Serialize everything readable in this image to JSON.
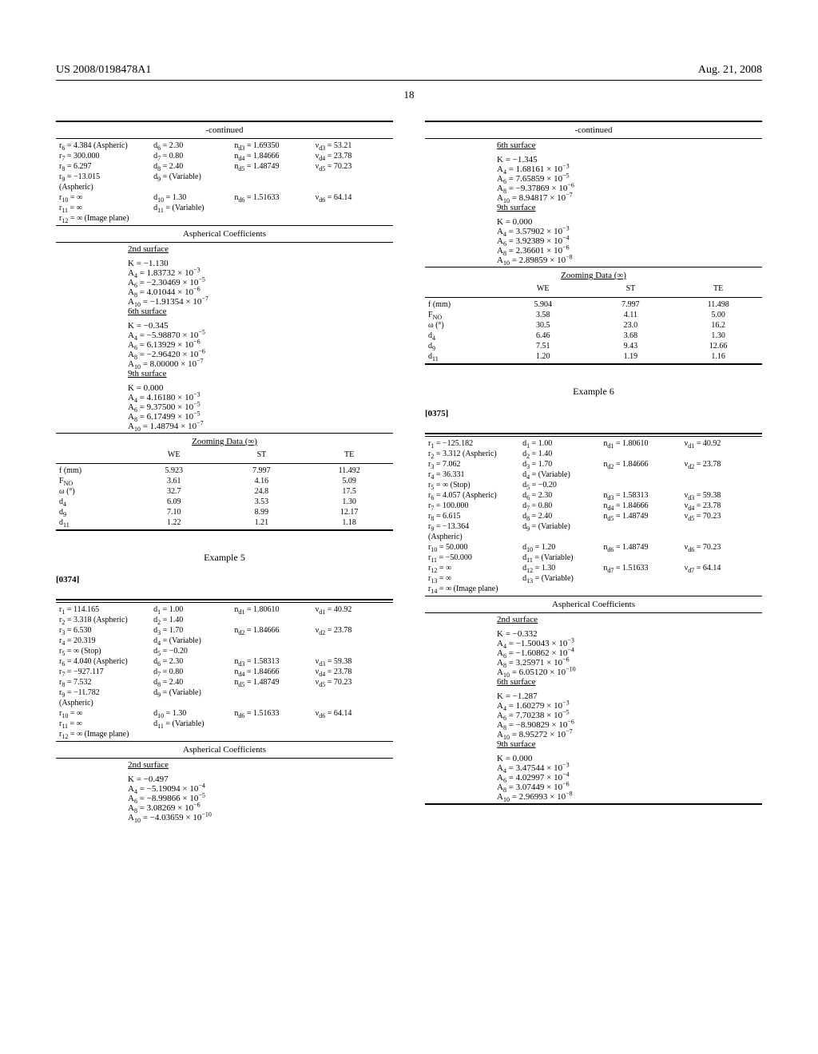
{
  "header": {
    "left": "US 2008/0198478A1",
    "right": "Aug. 21, 2008"
  },
  "page_number": "18",
  "left_col": {
    "continued_label": "-continued",
    "upper_rows": [
      [
        "r₆ = 4.384 (Aspheric)",
        "d₆ = 2.30",
        "n_d3 = 1.69350",
        "ν_d3 = 53.21"
      ],
      [
        "r₇ = 300.000",
        "d₇ = 0.80",
        "n_d4 = 1.84666",
        "ν_d4 = 23.78"
      ],
      [
        "r₈ = 6.297",
        "d₈ = 2.40",
        "n_d5 = 1.48749",
        "ν_d5 = 70.23"
      ],
      [
        "r₉ = −13.015",
        "d₉ = (Variable)",
        "",
        ""
      ],
      [
        "(Aspheric)",
        "",
        "",
        ""
      ],
      [
        "r₁₀ = ∞",
        "d₁₀ = 1.30",
        "n_d6 = 1.51633",
        "ν_d6 = 64.14"
      ],
      [
        "r₁₁ = ∞",
        "d₁₁ = (Variable)",
        "",
        ""
      ],
      [
        "r₁₂ = ∞ (Image plane)",
        "",
        "",
        ""
      ]
    ],
    "asph_title": "Aspherical Coefficients",
    "asph_blocks": [
      {
        "heading": "2nd surface",
        "lines": [
          "K = −1.130",
          "A₄ = 1.83732 × 10⁻³",
          "A₆ = −2.30469 × 10⁻⁵",
          "A₈ = 4.01044 × 10⁻⁶",
          "A₁₀ = −1.91354 × 10⁻⁷"
        ]
      },
      {
        "heading": "6th surface",
        "lines": [
          "K = −0.345",
          "A₄ = −5.98870 × 10⁻⁵",
          "A₆ = 6.13929 × 10⁻⁶",
          "A₈ = −2.96420 × 10⁻⁶",
          "A₁₀ = 8.00000 × 10⁻⁷"
        ]
      },
      {
        "heading": "9th surface",
        "lines": [
          "K = 0.000",
          "A₄ = 4.16180 × 10⁻³",
          "A₆ = 9.37500 × 10⁻⁵",
          "A₈ = 6.17499 × 10⁻⁵",
          "A₁₀ = 1.48794 × 10⁻⁷"
        ]
      }
    ],
    "zoom_title": "Zooming Data (∞)",
    "zoom_head": [
      "",
      "WE",
      "ST",
      "TE"
    ],
    "zoom_rows": [
      [
        "f (mm)",
        "5.923",
        "7.997",
        "11.492"
      ],
      [
        "F_NO",
        "3.61",
        "4.16",
        "5.09"
      ],
      [
        "ω (°)",
        "32.7",
        "24.8",
        "17.5"
      ],
      [
        "d₄",
        "6.09",
        "3.53",
        "1.30"
      ],
      [
        "d₉",
        "7.10",
        "8.99",
        "12.17"
      ],
      [
        "d₁₁",
        "1.22",
        "1.21",
        "1.18"
      ]
    ],
    "ex5_title": "Example 5",
    "ex5_para": "[0374]",
    "ex5_rows": [
      [
        "r₁ = 114.165",
        "d₁ = 1.00",
        "n_d1 = 1.80610",
        "ν_d1 = 40.92"
      ],
      [
        "r₂ = 3.318 (Aspheric)",
        "d₂ = 1.40",
        "",
        ""
      ],
      [
        "r₃ = 6.530",
        "d₃ = 1.70",
        "n_d2 = 1.84666",
        "ν_d2 = 23.78"
      ],
      [
        "r₄ = 20.319",
        "d₄ = (Variable)",
        "",
        ""
      ],
      [
        "r₅ = ∞ (Stop)",
        "d₅ = −0.20",
        "",
        ""
      ],
      [
        "r₆ = 4.040 (Aspheric)",
        "d₆ = 2.30",
        "n_d3 = 1.58313",
        "ν_d3 = 59.38"
      ],
      [
        "r₇ = −927.117",
        "d₇ = 0.80",
        "n_d4 = 1.84666",
        "ν_d4 = 23.78"
      ],
      [
        "r₈ = 7.532",
        "d₈ = 2.40",
        "n_d5 = 1.48749",
        "ν_d5 = 70.23"
      ],
      [
        "r₉ = −11.782",
        "d₉ = (Variable)",
        "",
        ""
      ],
      [
        "(Aspheric)",
        "",
        "",
        ""
      ],
      [
        "r₁₀ = ∞",
        "d₁₀ = 1.30",
        "n_d6 = 1.51633",
        "ν_d6 = 64.14"
      ],
      [
        "r₁₁ = ∞",
        "d₁₁ = (Variable)",
        "",
        ""
      ],
      [
        "r₁₂ = ∞ (Image plane)",
        "",
        "",
        ""
      ]
    ],
    "ex5_asph_title": "Aspherical Coefficients",
    "ex5_asph_block": {
      "heading": "2nd surface",
      "lines": [
        "K = −0.497",
        "A₄ = −5.19094 × 10⁻⁴",
        "A₆ = −8.99866 × 10⁻⁵",
        "A₈ = 3.08269 × 10⁻⁶",
        "A₁₀ = −4.03659 × 10⁻¹⁰"
      ]
    }
  },
  "right_col": {
    "continued_label": "-continued",
    "asph_blocks": [
      {
        "heading": "6th surface",
        "lines": [
          "K = −1.345",
          "A₄ = 1.68161 × 10⁻³",
          "A₆ = 7.65859 × 10⁻⁵",
          "A₈ = −9.37869 × 10⁻⁶",
          "A₁₀ = 8.94817 × 10⁻⁷"
        ]
      },
      {
        "heading": "9th surface",
        "lines": [
          "K = 0.000",
          "A₄ = 3.57902 × 10⁻³",
          "A₆ = 3.92389 × 10⁻⁴",
          "A₈ = 2.36601 × 10⁻⁶",
          "A₁₀ = 2.89859 × 10⁻⁸"
        ]
      }
    ],
    "zoom_title": "Zooming Data (∞)",
    "zoom_head": [
      "",
      "WE",
      "ST",
      "TE"
    ],
    "zoom_rows": [
      [
        "f (mm)",
        "5.904",
        "7.997",
        "11.498"
      ],
      [
        "F_NO",
        "3.58",
        "4.11",
        "5.00"
      ],
      [
        "ω (°)",
        "30.5",
        "23.0",
        "16.2"
      ],
      [
        "d₄",
        "6.46",
        "3.68",
        "1.30"
      ],
      [
        "d₉",
        "7.51",
        "9.43",
        "12.66"
      ],
      [
        "d₁₁",
        "1.20",
        "1.19",
        "1.16"
      ]
    ],
    "ex6_title": "Example 6",
    "ex6_para": "[0375]",
    "ex6_rows": [
      [
        "r₁ = −125.182",
        "d₁ = 1.00",
        "n_d1 = 1.80610",
        "ν_d1 = 40.92"
      ],
      [
        "r₂ = 3.312 (Aspheric)",
        "d₂ = 1.40",
        "",
        ""
      ],
      [
        "r₃ = 7.062",
        "d₃ = 1.70",
        "n_d2 = 1.84666",
        "ν_d2 = 23.78"
      ],
      [
        "r₄ = 36.331",
        "d₄ = (Variable)",
        "",
        ""
      ],
      [
        "r₅ = ∞ (Stop)",
        "d₅ = −0.20",
        "",
        ""
      ],
      [
        "r₆ = 4.057 (Aspheric)",
        "d₆ = 2.30",
        "n_d3 = 1.58313",
        "ν_d3 = 59.38"
      ],
      [
        "r₇ = 100.000",
        "d₇ = 0.80",
        "n_d4 = 1.84666",
        "ν_d4 = 23.78"
      ],
      [
        "r₈ = 6.615",
        "d₈ = 2.40",
        "n_d5 = 1.48749",
        "ν_d5 = 70.23"
      ],
      [
        "r₉ = −13.364",
        "d₉ = (Variable)",
        "",
        ""
      ],
      [
        "(Aspheric)",
        "",
        "",
        ""
      ],
      [
        "r₁₀ = 50.000",
        "d₁₀ = 1.20",
        "n_d6 = 1.48749",
        "ν_d6 = 70.23"
      ],
      [
        "r₁₁ = −50.000",
        "d₁₁ = (Variable)",
        "",
        ""
      ],
      [
        "r₁₂ = ∞",
        "d₁₂ = 1.30",
        "n_d7 = 1.51633",
        "ν_d7 = 64.14"
      ],
      [
        "r₁₃ = ∞",
        "d₁₃ = (Variable)",
        "",
        ""
      ],
      [
        "r₁₄ = ∞ (Image plane)",
        "",
        "",
        ""
      ]
    ],
    "ex6_asph_title": "Aspherical Coefficients",
    "ex6_asph_blocks": [
      {
        "heading": "2nd surface",
        "lines": [
          "K = −0.332",
          "A₄ = −1.50043 × 10⁻³",
          "A₆ = −1.60862 × 10⁻⁴",
          "A₈ = 3.25971 × 10⁻⁶",
          "A₁₀ = 6.05120 × 10⁻¹⁰"
        ]
      },
      {
        "heading": "6th surface",
        "lines": [
          "K = −1.287",
          "A₄ = 1.60279 × 10⁻³",
          "A₆ = 7.70238 × 10⁻⁵",
          "A₈ = −8.90829 × 10⁻⁶",
          "A₁₀ = 8.95272 × 10⁻⁷"
        ]
      },
      {
        "heading": "9th surface",
        "lines": [
          "K = 0.000",
          "A₄ = 3.47544 × 10⁻³",
          "A₆ = 4.02997 × 10⁻⁴",
          "A₈ = 3.07449 × 10⁻⁶",
          "A₁₀ = 2.96993 × 10⁻⁸"
        ]
      }
    ]
  }
}
